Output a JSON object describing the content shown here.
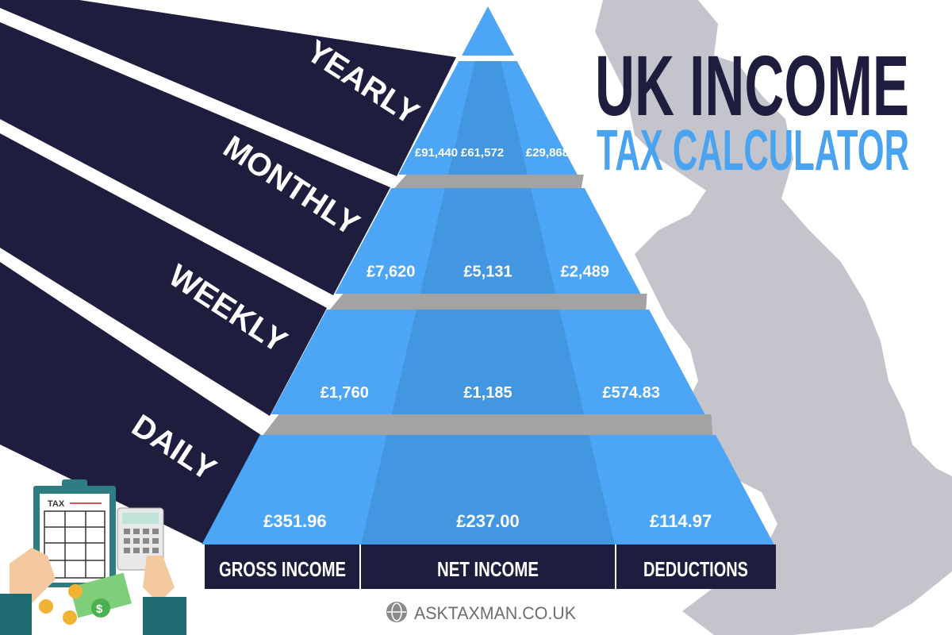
{
  "title": {
    "line1": "UK INCOME",
    "line2": "TAX CALCULATOR"
  },
  "colors": {
    "navy": "#1e1d3d",
    "blue_light": "#4da6f5",
    "blue_mid": "#4396e0",
    "title_blue": "#4aa3f0",
    "gray_band": "#a3a3a3",
    "map": "#c4c4cc"
  },
  "periods": [
    {
      "label": "YEARLY",
      "gross": "£91,440",
      "net": "£61,572",
      "deductions": "£29,868"
    },
    {
      "label": "MONTHLY",
      "gross": "£7,620",
      "net": "£5,131",
      "deductions": "£2,489"
    },
    {
      "label": "WEEKLY",
      "gross": "£1,760",
      "net": "£1,185",
      "deductions": "£574.83"
    },
    {
      "label": "DAILY",
      "gross": "£351.96",
      "net": "£237.00",
      "deductions": "£114.97"
    }
  ],
  "columns": [
    "GROSS INCOME",
    "NET INCOME",
    "DEDUCTIONS"
  ],
  "illustration": {
    "form_label": "TAX"
  },
  "footer": {
    "website": "ASKTAXMAN.CO.UK",
    "icon": "globe-icon"
  }
}
